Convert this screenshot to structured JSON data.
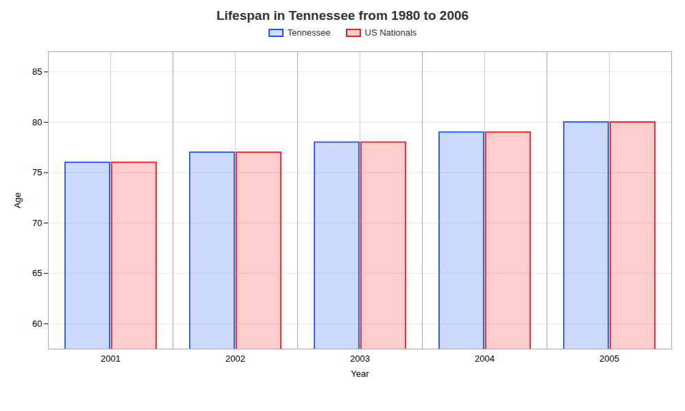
{
  "chart_data": {
    "type": "bar",
    "title": "Lifespan in Tennessee from 1980 to 2006",
    "xlabel": "Year",
    "ylabel": "Age",
    "categories": [
      "2001",
      "2002",
      "2003",
      "2004",
      "2005"
    ],
    "series": [
      {
        "name": "Tennessee",
        "color": "#1a56ff",
        "values": [
          76.0,
          77.0,
          78.0,
          79.0,
          80.0
        ]
      },
      {
        "name": "US Nationals",
        "color": "#ff1a1a",
        "values": [
          76.0,
          77.0,
          78.0,
          79.0,
          80.0
        ]
      }
    ],
    "ylim": [
      57.5,
      87
    ],
    "yticks": [
      60,
      65,
      70,
      75,
      80,
      85
    ],
    "grid": true,
    "legend": "top"
  }
}
